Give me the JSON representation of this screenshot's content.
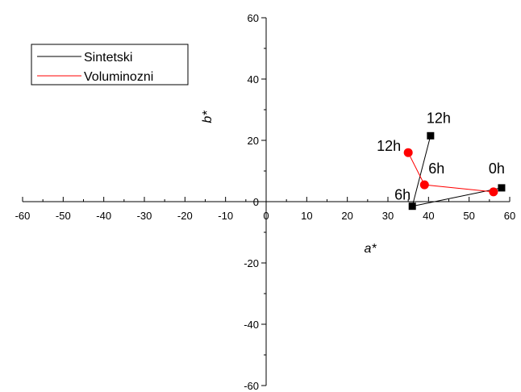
{
  "chart_data": {
    "type": "scatter",
    "title": "",
    "xlabel": "a*",
    "ylabel": "b*",
    "xlim": [
      -60,
      60
    ],
    "ylim": [
      -60,
      60
    ],
    "x_ticks": [
      -60,
      -50,
      -40,
      -30,
      -20,
      -10,
      0,
      10,
      20,
      30,
      40,
      50,
      60
    ],
    "y_ticks": [
      -60,
      -40,
      -20,
      0,
      20,
      40,
      60
    ],
    "legend_position": "top-left",
    "grid": false,
    "series": [
      {
        "name": "Sintetski",
        "color": "#000000",
        "marker": "square",
        "points": [
          {
            "x": 58,
            "y": 4.5,
            "label": "0h"
          },
          {
            "x": 36,
            "y": -1.5,
            "label": "6h"
          },
          {
            "x": 40.5,
            "y": 21.5,
            "label": "12h"
          }
        ]
      },
      {
        "name": "Voluminozni",
        "color": "#ff0000",
        "marker": "circle",
        "points": [
          {
            "x": 56,
            "y": 3.2,
            "label": ""
          },
          {
            "x": 39,
            "y": 5.5,
            "label": "6h"
          },
          {
            "x": 35,
            "y": 16,
            "label": "12h"
          }
        ]
      }
    ]
  }
}
